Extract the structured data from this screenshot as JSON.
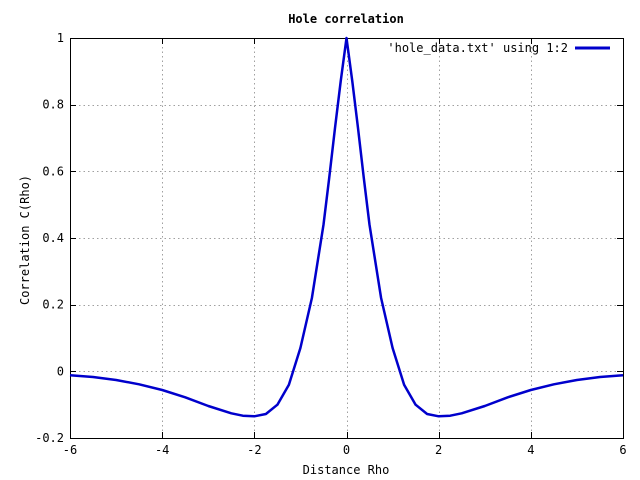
{
  "chart_data": {
    "type": "line",
    "title": "Hole correlation",
    "xlabel": "Distance Rho",
    "ylabel": "Correlation C(Rho)",
    "xlim": [
      -6,
      6
    ],
    "ylim": [
      -0.2,
      1
    ],
    "xticks": [
      -6,
      -4,
      -2,
      0,
      2,
      4,
      6
    ],
    "yticks": [
      -0.2,
      0,
      0.2,
      0.4,
      0.6,
      0.8,
      1
    ],
    "xtick_labels": [
      "-6",
      "-4",
      "-2",
      "0",
      "2",
      "4",
      "6"
    ],
    "ytick_labels": [
      "-0.2",
      "0",
      "0.2",
      "0.4",
      "0.6",
      "0.8",
      "1"
    ],
    "grid": true,
    "legend_position": "top-right",
    "series": [
      {
        "name": "'hole_data.txt' using 1:2",
        "color": "#0000cc",
        "x": [
          -6,
          -5.5,
          -5,
          -4.5,
          -4,
          -3.5,
          -3,
          -2.5,
          -2.25,
          -2,
          -1.75,
          -1.5,
          -1.25,
          -1,
          -0.75,
          -0.5,
          -0.375,
          -0.25,
          -0.125,
          0,
          0.125,
          0.25,
          0.375,
          0.5,
          0.75,
          1,
          1.25,
          1.5,
          1.75,
          2,
          2.25,
          2.5,
          3,
          3.5,
          4,
          4.5,
          5,
          5.5,
          6
        ],
        "y": [
          -0.012,
          -0.017,
          -0.026,
          -0.039,
          -0.056,
          -0.078,
          -0.104,
          -0.126,
          -0.133,
          -0.135,
          -0.128,
          -0.1,
          -0.04,
          0.07,
          0.22,
          0.44,
          0.58,
          0.73,
          0.87,
          1.0,
          0.87,
          0.73,
          0.58,
          0.44,
          0.22,
          0.07,
          -0.04,
          -0.1,
          -0.128,
          -0.135,
          -0.133,
          -0.126,
          -0.104,
          -0.078,
          -0.056,
          -0.039,
          -0.026,
          -0.017,
          -0.012
        ]
      }
    ]
  }
}
